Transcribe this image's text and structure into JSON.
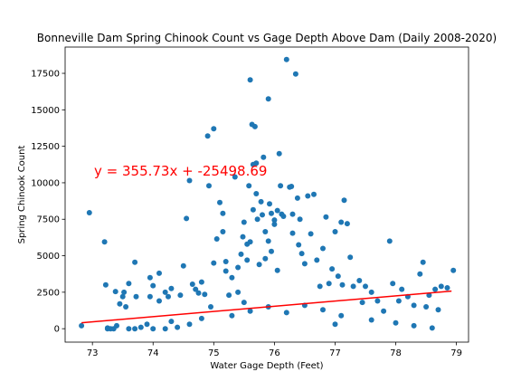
{
  "chart_data": {
    "type": "scatter",
    "title": "Bonneville Dam Spring Chinook Count vs Gage Depth Above Dam (Daily 2008-2020)",
    "xlabel": "Water Gage Depth (Feet)",
    "ylabel": "Spring Chinook Count",
    "xlim": [
      72.55,
      79.2
    ],
    "ylim": [
      -920,
      19300
    ],
    "xticks": [
      73,
      74,
      75,
      76,
      77,
      78,
      79
    ],
    "xtick_labels": [
      "73",
      "74",
      "75",
      "76",
      "77",
      "78",
      "79"
    ],
    "yticks": [
      0,
      2500,
      5000,
      7500,
      10000,
      12500,
      15000,
      17500
    ],
    "ytick_labels": [
      "0",
      "2500",
      "5000",
      "7500",
      "10000",
      "12500",
      "15000",
      "17500"
    ],
    "grid": false,
    "marker_color": "#1f77b4",
    "regression": {
      "slope": 355.73,
      "intercept": -25498.69,
      "x_range": [
        72.82,
        78.92
      ],
      "color": "#ff0000",
      "equation_label": "y = 355.73x + -25498.69"
    },
    "series": [
      {
        "points": [
          [
            72.82,
            200
          ],
          [
            72.95,
            7950
          ],
          [
            73.2,
            5950
          ],
          [
            73.22,
            3000
          ],
          [
            73.25,
            50
          ],
          [
            73.3,
            0
          ],
          [
            73.38,
            2550
          ],
          [
            73.45,
            1700
          ],
          [
            73.5,
            2200
          ],
          [
            73.52,
            2500
          ],
          [
            73.55,
            1500
          ],
          [
            73.6,
            3100
          ],
          [
            73.7,
            4550
          ],
          [
            73.72,
            2200
          ],
          [
            73.8,
            100
          ],
          [
            73.9,
            300
          ],
          [
            73.95,
            3500
          ],
          [
            73.95,
            2200
          ],
          [
            74.0,
            2950
          ],
          [
            74.1,
            1900
          ],
          [
            74.1,
            3800
          ],
          [
            74.2,
            2500
          ],
          [
            74.25,
            2200
          ],
          [
            74.3,
            2750
          ],
          [
            74.3,
            500
          ],
          [
            74.45,
            2300
          ],
          [
            74.5,
            4300
          ],
          [
            74.55,
            7550
          ],
          [
            74.6,
            10150
          ],
          [
            74.65,
            3050
          ],
          [
            74.7,
            2700
          ],
          [
            74.75,
            2450
          ],
          [
            74.8,
            3200
          ],
          [
            74.85,
            2350
          ],
          [
            74.9,
            13200
          ],
          [
            74.92,
            9800
          ],
          [
            74.95,
            1500
          ],
          [
            75.0,
            4500
          ],
          [
            75.0,
            13700
          ],
          [
            75.05,
            6150
          ],
          [
            75.1,
            8650
          ],
          [
            75.15,
            6650
          ],
          [
            75.15,
            7900
          ],
          [
            75.2,
            3950
          ],
          [
            75.2,
            4600
          ],
          [
            75.25,
            2300
          ],
          [
            75.3,
            3500
          ],
          [
            75.35,
            10400
          ],
          [
            75.4,
            2500
          ],
          [
            75.4,
            4200
          ],
          [
            75.45,
            5100
          ],
          [
            75.48,
            6300
          ],
          [
            75.5,
            7300
          ],
          [
            75.5,
            1800
          ],
          [
            75.55,
            5800
          ],
          [
            75.55,
            4700
          ],
          [
            75.58,
            9800
          ],
          [
            75.6,
            17050
          ],
          [
            75.6,
            5950
          ],
          [
            75.63,
            14000
          ],
          [
            75.65,
            8150
          ],
          [
            75.65,
            11250
          ],
          [
            75.68,
            13850
          ],
          [
            75.7,
            11350
          ],
          [
            75.7,
            9250
          ],
          [
            75.72,
            7500
          ],
          [
            75.75,
            4400
          ],
          [
            75.78,
            8700
          ],
          [
            75.8,
            7800
          ],
          [
            75.82,
            11750
          ],
          [
            75.85,
            6650
          ],
          [
            75.85,
            4800
          ],
          [
            75.9,
            15750
          ],
          [
            75.9,
            6000
          ],
          [
            75.92,
            8550
          ],
          [
            75.95,
            7900
          ],
          [
            75.95,
            5300
          ],
          [
            76.0,
            7450
          ],
          [
            76.0,
            7150
          ],
          [
            76.05,
            8100
          ],
          [
            76.05,
            4000
          ],
          [
            76.08,
            12000
          ],
          [
            76.1,
            9800
          ],
          [
            76.12,
            7850
          ],
          [
            76.15,
            7700
          ],
          [
            76.2,
            18450
          ],
          [
            76.25,
            9700
          ],
          [
            76.28,
            9750
          ],
          [
            76.3,
            6550
          ],
          [
            76.3,
            7850
          ],
          [
            76.35,
            17450
          ],
          [
            76.38,
            8950
          ],
          [
            76.4,
            5750
          ],
          [
            76.42,
            7500
          ],
          [
            76.45,
            5150
          ],
          [
            76.5,
            4450
          ],
          [
            76.55,
            9100
          ],
          [
            76.6,
            6500
          ],
          [
            76.65,
            9200
          ],
          [
            76.7,
            4700
          ],
          [
            76.75,
            2900
          ],
          [
            76.8,
            5500
          ],
          [
            76.85,
            7650
          ],
          [
            76.9,
            3100
          ],
          [
            76.95,
            4100
          ],
          [
            77.0,
            6650
          ],
          [
            77.05,
            3600
          ],
          [
            77.1,
            7300
          ],
          [
            77.12,
            3000
          ],
          [
            77.15,
            8800
          ],
          [
            77.2,
            7200
          ],
          [
            77.25,
            4900
          ],
          [
            77.3,
            2900
          ],
          [
            77.4,
            3300
          ],
          [
            77.45,
            1800
          ],
          [
            77.5,
            2900
          ],
          [
            77.6,
            2500
          ],
          [
            77.7,
            1900
          ],
          [
            77.8,
            1200
          ],
          [
            77.9,
            6000
          ],
          [
            77.95,
            3100
          ],
          [
            78.05,
            1900
          ],
          [
            78.1,
            2700
          ],
          [
            78.2,
            2200
          ],
          [
            78.3,
            1600
          ],
          [
            78.4,
            3750
          ],
          [
            78.45,
            4550
          ],
          [
            78.5,
            1500
          ],
          [
            78.55,
            2300
          ],
          [
            78.6,
            50
          ],
          [
            78.65,
            2700
          ],
          [
            78.7,
            1300
          ],
          [
            78.75,
            2900
          ],
          [
            78.85,
            2800
          ],
          [
            78.95,
            4000
          ],
          [
            75.3,
            900
          ],
          [
            75.6,
            1200
          ],
          [
            75.9,
            1500
          ],
          [
            76.2,
            1100
          ],
          [
            76.5,
            1600
          ],
          [
            76.8,
            1300
          ],
          [
            77.1,
            900
          ],
          [
            74.8,
            700
          ],
          [
            74.6,
            300
          ],
          [
            77.6,
            600
          ],
          [
            78.0,
            400
          ],
          [
            73.4,
            200
          ],
          [
            73.6,
            0
          ],
          [
            74.0,
            0
          ],
          [
            74.4,
            100
          ],
          [
            77.0,
            300
          ],
          [
            78.3,
            200
          ],
          [
            73.25,
            0
          ],
          [
            73.35,
            0
          ],
          [
            73.7,
            0
          ],
          [
            74.2,
            0
          ]
        ]
      }
    ]
  }
}
